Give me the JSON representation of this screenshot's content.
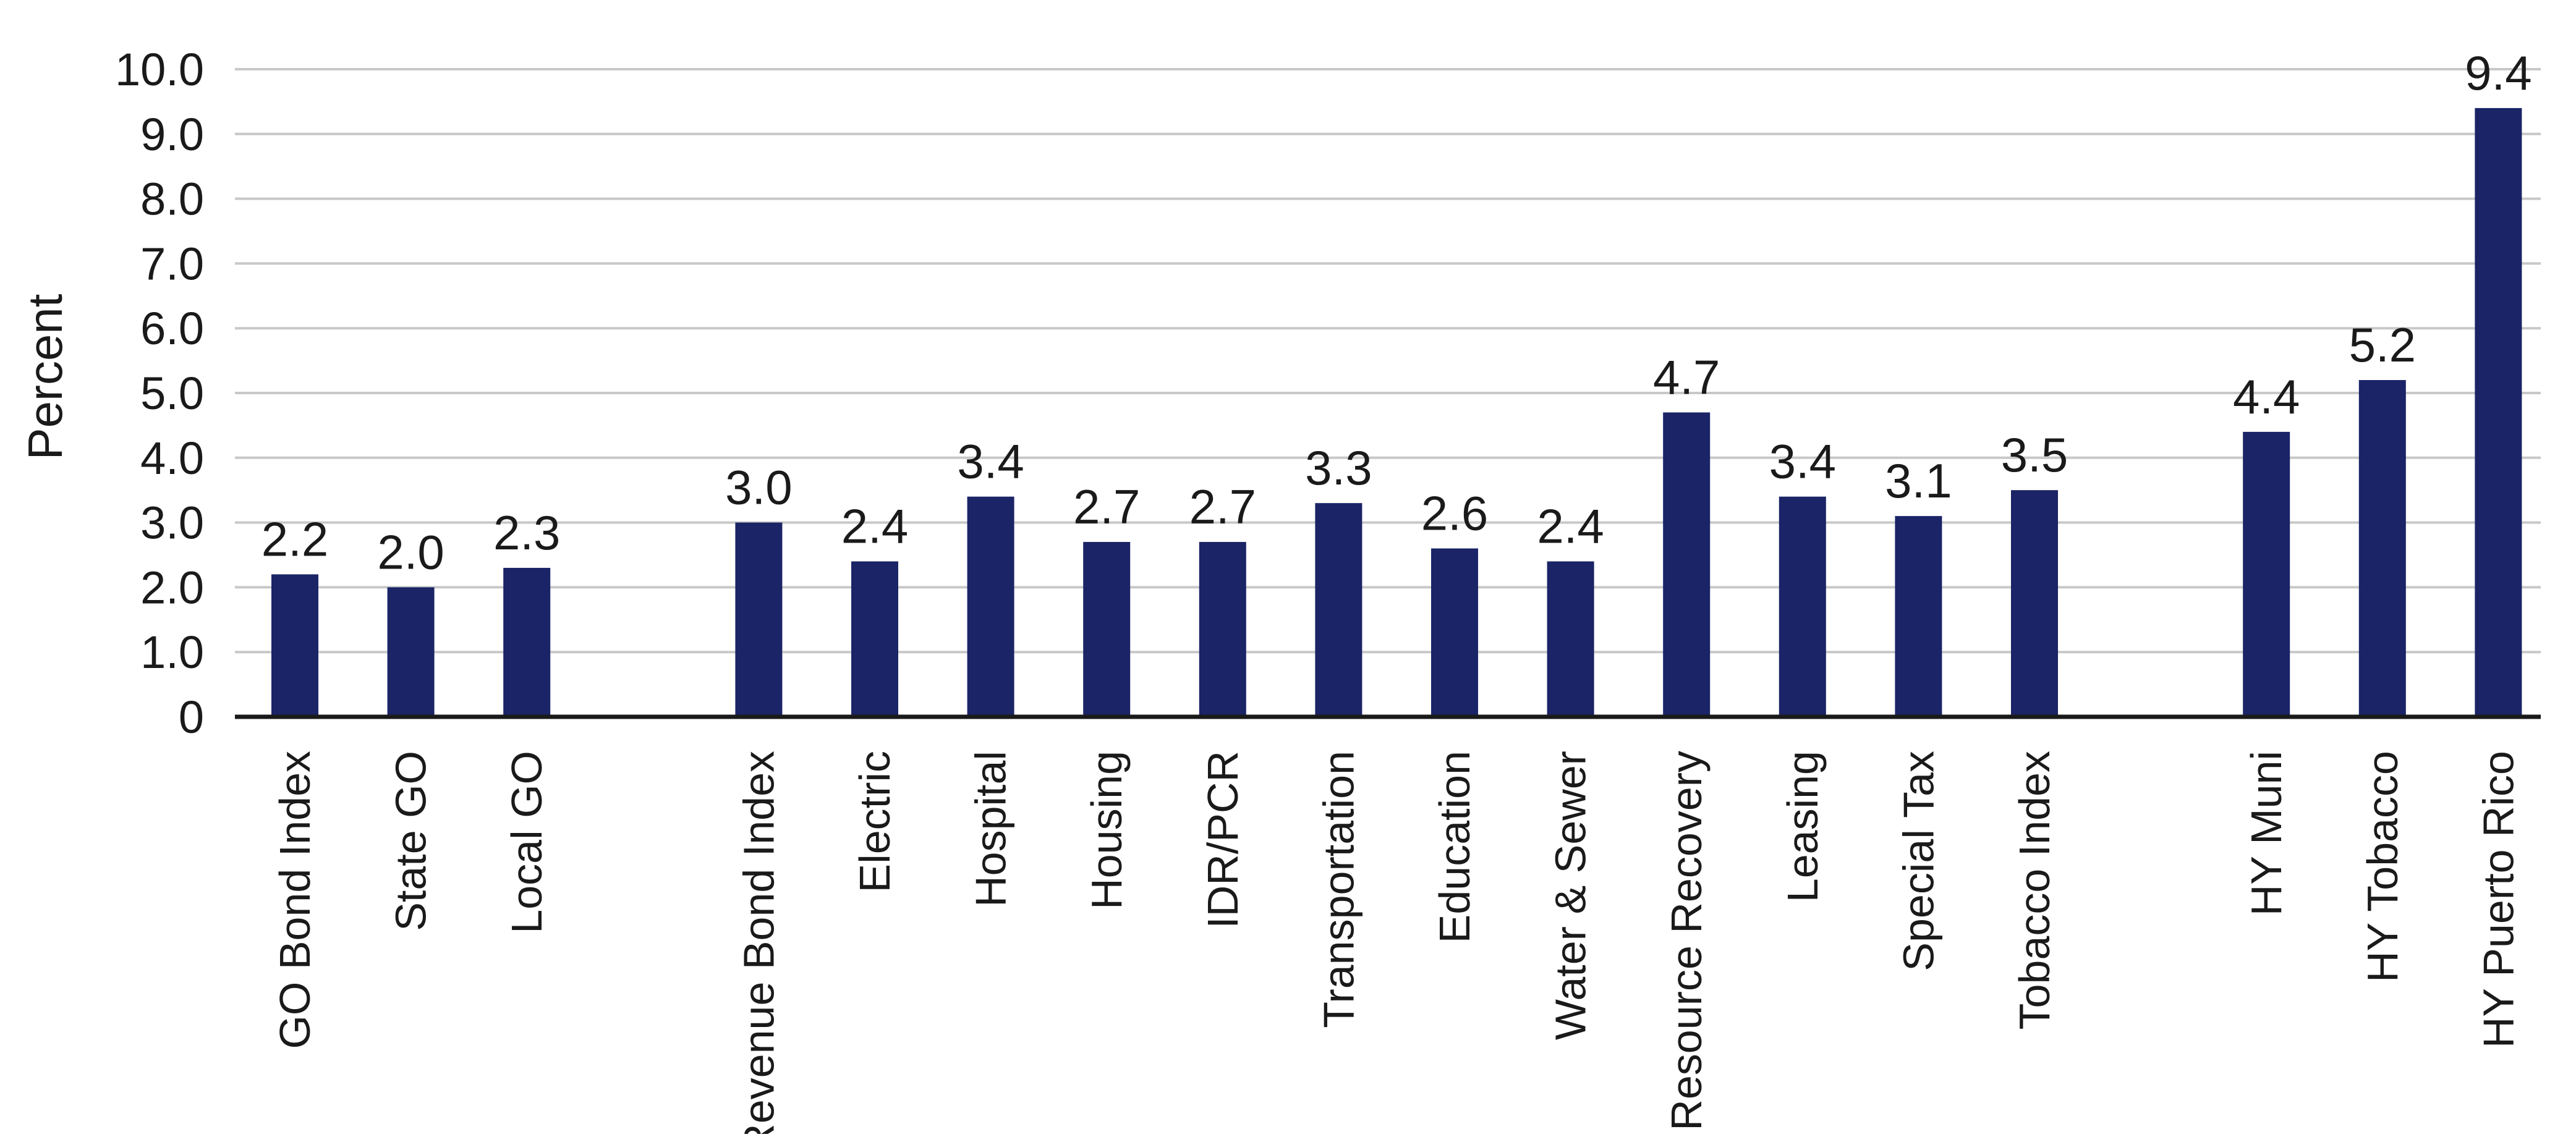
{
  "chart_data": {
    "type": "bar",
    "title": "",
    "xlabel": "",
    "ylabel": "Percent",
    "ylim": [
      0,
      10
    ],
    "y_ticks": [
      "0",
      "1.0",
      "2.0",
      "3.0",
      "4.0",
      "5.0",
      "6.0",
      "7.0",
      "8.0",
      "9.0",
      "10.0"
    ],
    "grid": true,
    "legend": "none",
    "bar_color": "#1a2466",
    "categories": [
      "GO Bond Index",
      "State GO",
      "Local GO",
      "Revenue Bond Index",
      "Electric",
      "Hospital",
      "Housing",
      "IDR/PCR",
      "Transportation",
      "Education",
      "Water & Sewer",
      "Resource Recovery",
      "Leasing",
      "Special Tax",
      "Tobacco Index",
      "HY Muni",
      "HY Tobacco",
      "HY Puerto Rico"
    ],
    "groups": [
      [
        "GO Bond Index",
        "State GO",
        "Local GO"
      ],
      [
        "Revenue Bond Index",
        "Electric",
        "Hospital",
        "Housing",
        "IDR/PCR",
        "Transportation",
        "Education",
        "Water & Sewer",
        "Resource Recovery",
        "Leasing",
        "Special Tax",
        "Tobacco Index"
      ],
      [
        "HY Muni",
        "HY Tobacco",
        "HY Puerto Rico"
      ]
    ],
    "values": [
      2.2,
      2.0,
      2.3,
      3.0,
      2.4,
      3.4,
      2.7,
      2.7,
      3.3,
      2.6,
      2.4,
      4.7,
      3.4,
      3.1,
      3.5,
      4.4,
      5.2,
      9.4
    ],
    "value_labels": [
      "2.2",
      "2.0",
      "2.3",
      "3.0",
      "2.4",
      "3.4",
      "2.7",
      "2.7",
      "3.3",
      "2.6",
      "2.4",
      "4.7",
      "3.4",
      "3.1",
      "3.5",
      "4.4",
      "5.2",
      "9.4"
    ]
  }
}
